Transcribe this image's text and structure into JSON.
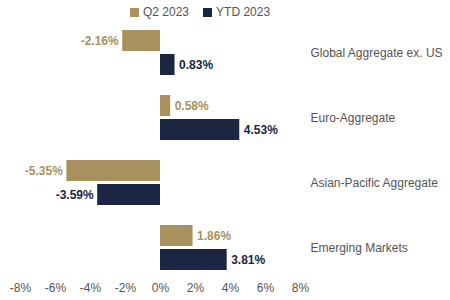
{
  "chart_data": {
    "type": "bar",
    "orientation": "horizontal",
    "categories": [
      "Global Aggregate ex. US",
      "Euro-Aggregate",
      "Asian-Pacific Aggregate",
      "Emerging Markets"
    ],
    "series": [
      {
        "name": "Q2 2023",
        "color": "#a8915c",
        "values": [
          -2.16,
          0.58,
          -5.35,
          1.86
        ],
        "value_labels": [
          "-2.16%",
          "0.58%",
          "-5.35%",
          "1.86%"
        ]
      },
      {
        "name": "YTD 2023",
        "color": "#1c2541",
        "values": [
          0.83,
          4.53,
          -3.59,
          3.81
        ],
        "value_labels": [
          "0.83%",
          "4.53%",
          "-3.59%",
          "3.81%"
        ]
      }
    ],
    "xlim": [
      -8,
      8
    ],
    "xticks": [
      {
        "value": -8,
        "label": "-8%"
      },
      {
        "value": -6,
        "label": "-6%"
      },
      {
        "value": -4,
        "label": "-4%"
      },
      {
        "value": -2,
        "label": "-2%"
      },
      {
        "value": 0,
        "label": "0%"
      },
      {
        "value": 2,
        "label": "2%"
      },
      {
        "value": 4,
        "label": "4%"
      },
      {
        "value": 6,
        "label": "6%"
      },
      {
        "value": 8,
        "label": "8%"
      }
    ],
    "data_labels": true,
    "legend": "top",
    "grid": false
  }
}
